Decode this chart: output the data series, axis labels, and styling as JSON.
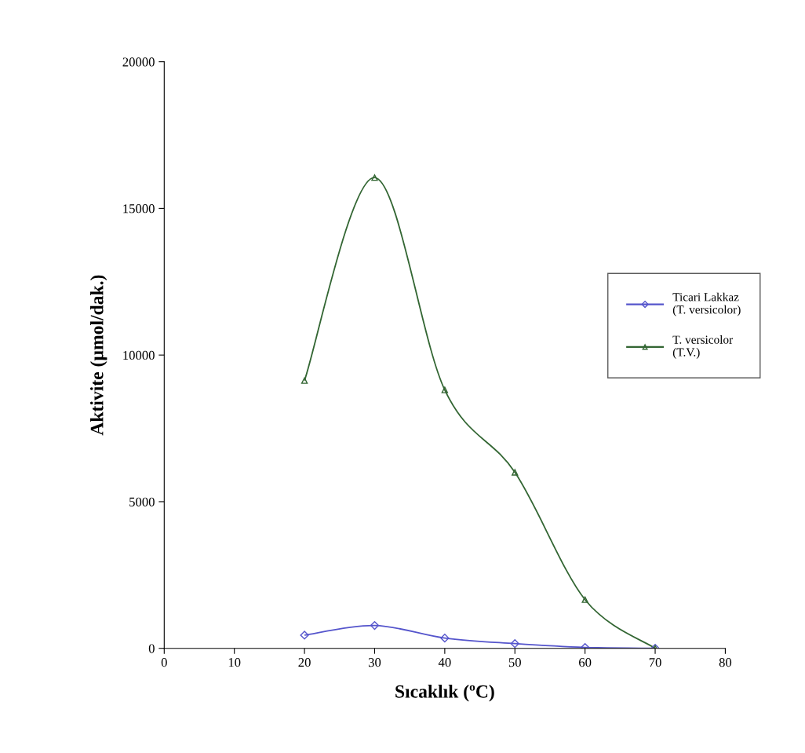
{
  "chart_data": {
    "type": "line",
    "xlabel": "Sıcaklık (ºC)",
    "ylabel": "Aktivite (µmol/dak.)",
    "x": [
      20,
      30,
      40,
      50,
      60,
      70
    ],
    "series": [
      {
        "name": "Ticari Lakkaz\n(T. versicolor)",
        "color": "#5555cc",
        "marker": "diamond",
        "values": [
          450,
          780,
          350,
          160,
          30,
          0
        ]
      },
      {
        "name": "T. versicolor\n(T.V.)",
        "color": "#336633",
        "marker": "triangle",
        "values": [
          9130,
          16050,
          8810,
          6000,
          1660,
          0
        ]
      }
    ],
    "xlim": [
      0,
      80
    ],
    "xticks": [
      0,
      10,
      20,
      30,
      40,
      50,
      60,
      70,
      80
    ],
    "ylim": [
      0,
      20000
    ],
    "yticks": [
      0,
      5000,
      10000,
      15000,
      20000
    ],
    "grid": false,
    "legend": "right",
    "line_style": "solid"
  }
}
